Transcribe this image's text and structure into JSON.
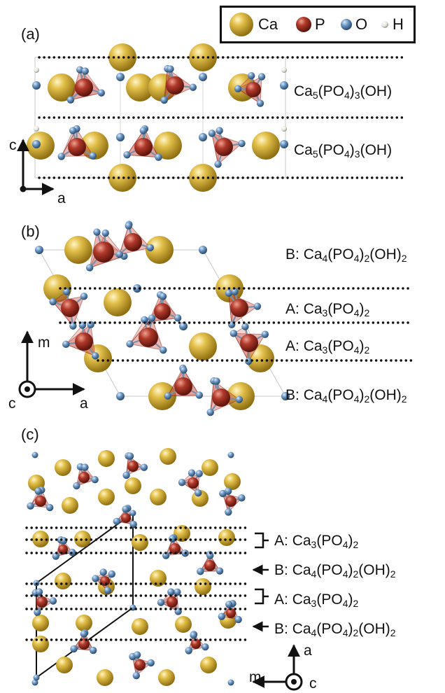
{
  "panels": {
    "a": {
      "letter": "(a)",
      "row1_formula": [
        "Ca",
        "5",
        "(PO",
        "4",
        ")",
        "3",
        "(OH)"
      ],
      "row2_formula": [
        "Ca",
        "5",
        "(PO",
        "4",
        ")",
        "3",
        "(OH)"
      ],
      "axis_vertical": "c",
      "axis_horizontal": "a"
    },
    "b": {
      "letter": "(b)",
      "labels": [
        {
          "prefix": "B: ",
          "formula": [
            "Ca",
            "4",
            "(PO",
            "4",
            ")",
            "2",
            "(OH)",
            "2"
          ]
        },
        {
          "prefix": "A: ",
          "formula": [
            "Ca",
            "3",
            "(PO",
            "4",
            ")",
            "2"
          ]
        },
        {
          "prefix": "A: ",
          "formula": [
            "Ca",
            "3",
            "(PO",
            "4",
            ")",
            "2"
          ]
        },
        {
          "prefix": "B: ",
          "formula": [
            "Ca",
            "4",
            "(PO",
            "4",
            ")",
            "2",
            "(OH)",
            "2"
          ]
        }
      ],
      "axis_vertical": "m",
      "axis_horizontal": "a",
      "axis_out_of_plane": "c"
    },
    "c": {
      "letter": "(c)",
      "labels": [
        {
          "prefix": "A: ",
          "formula": [
            "Ca",
            "3",
            "(PO",
            "4",
            ")",
            "2"
          ]
        },
        {
          "prefix": "B: ",
          "formula": [
            "Ca",
            "4",
            "(PO",
            "4",
            ")",
            "2",
            "(OH)",
            "2"
          ]
        },
        {
          "prefix": "A: ",
          "formula": [
            "Ca",
            "3",
            "(PO",
            "4",
            ")",
            "2"
          ]
        },
        {
          "prefix": "B: ",
          "formula": [
            "Ca",
            "4",
            "(PO",
            "4",
            ")",
            "2",
            "(OH)",
            "2"
          ]
        }
      ],
      "axis_vertical": "a",
      "axis_horizontal": "m",
      "axis_out_of_plane": "c"
    }
  },
  "legend": {
    "items": [
      {
        "label": "Ca",
        "color": "#d9b533"
      },
      {
        "label": "P",
        "color": "#b0392a"
      },
      {
        "label": "O",
        "color": "#5f8fbf"
      },
      {
        "label": "H",
        "color": "#e8e8e0"
      }
    ]
  }
}
